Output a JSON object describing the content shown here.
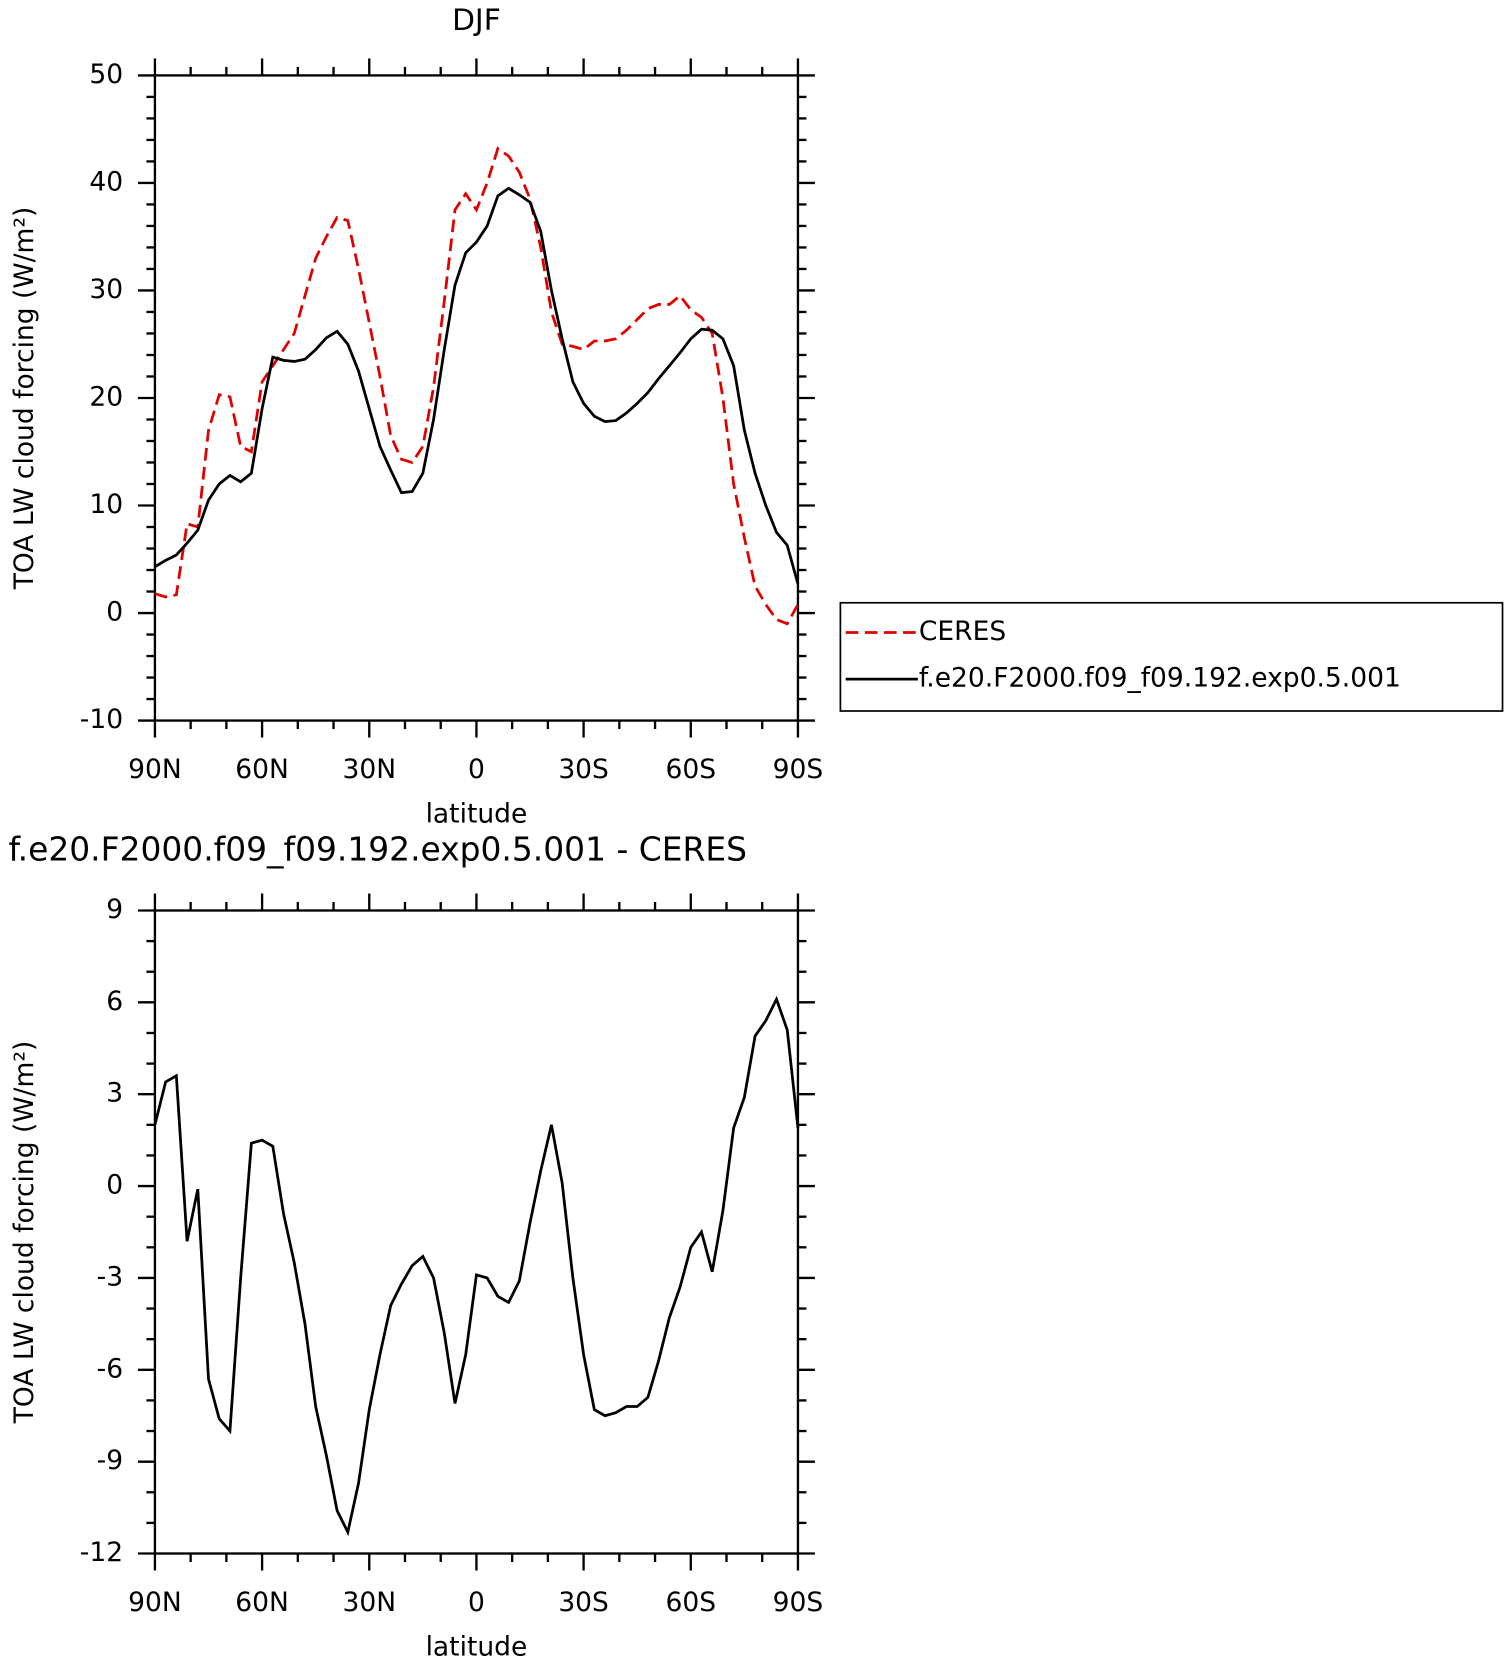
{
  "chart_data": [
    {
      "type": "line",
      "title": "DJF",
      "ylabel": "TOA LW cloud forcing (W/m²)",
      "xlabel": "latitude",
      "x": [
        90,
        87,
        84,
        81,
        78,
        75,
        72,
        69,
        66,
        63,
        60,
        57,
        54,
        51,
        48,
        45,
        42,
        39,
        36,
        33,
        30,
        27,
        24,
        21,
        18,
        15,
        12,
        9,
        6,
        3,
        0,
        -3,
        -6,
        -9,
        -12,
        -15,
        -18,
        -21,
        -24,
        -27,
        -30,
        -33,
        -36,
        -39,
        -42,
        -45,
        -48,
        -51,
        -54,
        -57,
        -60,
        -63,
        -66,
        -69,
        -72,
        -75,
        -78,
        -81,
        -84,
        -87,
        -90
      ],
      "series": [
        {
          "name": "CERES",
          "color": "#e00000",
          "dash": "dashed",
          "values": [
            1.8,
            1.5,
            1.7,
            8.3,
            8,
            17,
            20.3,
            20.1,
            15.5,
            15,
            21.5,
            23,
            24.5,
            26,
            29.5,
            33,
            35,
            36.8,
            36.5,
            32,
            27,
            22,
            16.5,
            14.3,
            14,
            15.5,
            21,
            29,
            37.5,
            39,
            37.5,
            40,
            43.2,
            42.5,
            41,
            38.5,
            34,
            28,
            25,
            24.8,
            24.5,
            25.3,
            25.3,
            25.5,
            26.3,
            27.3,
            28.3,
            28.7,
            28.7,
            29.5,
            28.2,
            27.5,
            26,
            20,
            12,
            7,
            2.5,
            0.8,
            -0.6,
            -1,
            0.8
          ]
        },
        {
          "name": "f.e20.F2000.f09_f09.192.exp0.5.001",
          "color": "#000000",
          "dash": "solid",
          "values": [
            4.3,
            4.9,
            5.4,
            6.5,
            7.7,
            10.5,
            12,
            12.8,
            12.2,
            13,
            19,
            23.8,
            23.5,
            23.4,
            23.6,
            24.5,
            25.6,
            26.2,
            25,
            22.5,
            19,
            15.5,
            13.3,
            11.2,
            11.3,
            13,
            18,
            24.5,
            30.5,
            33.5,
            34.5,
            36,
            38.8,
            39.5,
            38.9,
            38.2,
            35.5,
            30,
            25.5,
            21.5,
            19.5,
            18.3,
            17.8,
            17.9,
            18.6,
            19.5,
            20.5,
            21.8,
            23,
            24.2,
            25.5,
            26.4,
            26.3,
            25.5,
            23,
            17,
            13,
            10,
            7.5,
            6.3,
            2.7
          ]
        }
      ],
      "xlim": [
        90,
        -90
      ],
      "xticks": [
        {
          "value": 90,
          "label": "90N"
        },
        {
          "value": 60,
          "label": "60N"
        },
        {
          "value": 30,
          "label": "30N"
        },
        0,
        {
          "value": -30,
          "label": "30S"
        },
        {
          "value": -60,
          "label": "60S"
        },
        {
          "value": -90,
          "label": "90S"
        }
      ],
      "xminorticks": [
        80,
        70,
        50,
        40,
        20,
        10,
        -10,
        -20,
        -40,
        -50,
        -70,
        -80
      ],
      "ylim": [
        -10,
        50
      ],
      "yticks": [
        -10,
        0,
        10,
        20,
        30,
        40,
        50
      ],
      "yminorticks": [
        -8,
        -6,
        -4,
        -2,
        2,
        4,
        6,
        8,
        12,
        14,
        16,
        18,
        22,
        24,
        26,
        28,
        32,
        34,
        36,
        38,
        42,
        44,
        46,
        48
      ],
      "legend": "right"
    },
    {
      "type": "line",
      "title": "f.e20.F2000.f09_f09.192.exp0.5.001 - CERES",
      "ylabel": "TOA LW cloud forcing (W/m²)",
      "xlabel": "latitude",
      "x": [
        90,
        87,
        84,
        81,
        78,
        75,
        72,
        69,
        66,
        63,
        60,
        57,
        54,
        51,
        48,
        45,
        42,
        39,
        36,
        33,
        30,
        27,
        24,
        21,
        18,
        15,
        12,
        9,
        6,
        3,
        0,
        -3,
        -6,
        -9,
        -12,
        -15,
        -18,
        -21,
        -24,
        -27,
        -30,
        -33,
        -36,
        -39,
        -42,
        -45,
        -48,
        -51,
        -54,
        -57,
        -60,
        -63,
        -66,
        -69,
        -72,
        -75,
        -78,
        -81,
        -84,
        -87,
        -90
      ],
      "series": [
        {
          "color": "#000000",
          "dash": "solid",
          "values": [
            2.0,
            3.4,
            3.6,
            -1.8,
            -0.1,
            -6.3,
            -7.6,
            -8.0,
            -3,
            1.4,
            1.5,
            1.3,
            -0.9,
            -2.5,
            -4.5,
            -7.2,
            -8.8,
            -10.6,
            -11.3,
            -9.7,
            -7.3,
            -5.5,
            -3.9,
            -3.2,
            -2.6,
            -2.3,
            -3.0,
            -4.8,
            -7.1,
            -5.5,
            -2.9,
            -3.0,
            -3.6,
            -3.8,
            -3.1,
            -1.2,
            0.5,
            2.0,
            0.1,
            -3,
            -5.5,
            -7.3,
            -7.5,
            -7.4,
            -7.2,
            -7.2,
            -6.9,
            -5.7,
            -4.3,
            -3.3,
            -2.0,
            -1.5,
            -2.8,
            -0.8,
            1.9,
            2.9,
            4.9,
            5.4,
            6.1,
            5.1,
            1.9
          ]
        }
      ],
      "xlim": [
        90,
        -90
      ],
      "xticks": [
        {
          "value": 90,
          "label": "90N"
        },
        {
          "value": 60,
          "label": "60N"
        },
        {
          "value": 30,
          "label": "30N"
        },
        0,
        {
          "value": -30,
          "label": "30S"
        },
        {
          "value": -60,
          "label": "60S"
        },
        {
          "value": -90,
          "label": "90S"
        }
      ],
      "xminorticks": [
        80,
        70,
        50,
        40,
        20,
        10,
        -10,
        -20,
        -40,
        -50,
        -70,
        -80
      ],
      "ylim": [
        -12,
        9
      ],
      "yticks": [
        -12,
        -9,
        -6,
        -3,
        0,
        3,
        6,
        9
      ],
      "yminorticks": [
        -11,
        -10,
        -8,
        -7,
        -5,
        -4,
        -2,
        -1,
        1,
        2,
        4,
        5,
        7,
        8
      ]
    }
  ]
}
